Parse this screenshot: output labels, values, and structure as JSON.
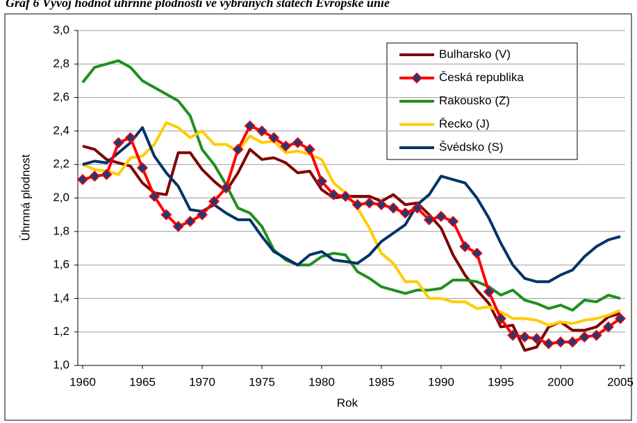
{
  "chart_data": {
    "type": "line",
    "title": "Graf 6 Vývoj hodnot úhrnné plodnosti ve vybraných státech Evropské unie",
    "x_label": "Rok",
    "y_label": "Úhrnná plodnost",
    "categories": [
      "1960",
      null,
      null,
      null,
      null,
      "1965",
      null,
      null,
      null,
      null,
      "1970",
      null,
      null,
      null,
      null,
      "1975",
      null,
      null,
      null,
      null,
      "1980",
      null,
      null,
      null,
      null,
      "1985",
      null,
      null,
      null,
      null,
      "1990",
      null,
      null,
      null,
      null,
      "1995",
      null,
      null,
      null,
      null,
      "2000",
      null,
      null,
      null,
      null,
      "2005"
    ],
    "ylim": [
      1.0,
      3.0
    ],
    "yticks": [
      {
        "value": 1.0,
        "label": "1,0"
      },
      {
        "value": 1.2,
        "label": "1,2"
      },
      {
        "value": 1.4,
        "label": "1,4"
      },
      {
        "value": 1.6,
        "label": "1,6"
      },
      {
        "value": 1.8,
        "label": "1,8"
      },
      {
        "value": 2.0,
        "label": "2,0"
      },
      {
        "value": 2.2,
        "label": "2,2"
      },
      {
        "value": 2.4,
        "label": "2,4"
      },
      {
        "value": 2.6,
        "label": "2,6"
      },
      {
        "value": 2.8,
        "label": "2,8"
      },
      {
        "value": 3.0,
        "label": "3,0"
      }
    ],
    "grid": true,
    "legend": "upper right",
    "series": [
      {
        "name": "Bulharsko (V)",
        "color": "#800000",
        "values": [
          2.31,
          2.29,
          2.23,
          2.21,
          2.19,
          2.09,
          2.03,
          2.02,
          2.27,
          2.27,
          2.17,
          2.1,
          2.04,
          2.15,
          2.29,
          2.23,
          2.24,
          2.21,
          2.15,
          2.16,
          2.05,
          2.0,
          2.01,
          2.01,
          2.01,
          1.98,
          2.02,
          1.96,
          1.97,
          1.9,
          1.82,
          1.66,
          1.54,
          1.45,
          1.37,
          1.23,
          1.24,
          1.09,
          1.11,
          1.23,
          1.26,
          1.21,
          1.21,
          1.23,
          1.29,
          1.31
        ]
      },
      {
        "name": "Česká republika",
        "color": "#ff0000",
        "marker": "diamond",
        "marker_color": "#1f3a78",
        "values": [
          2.11,
          2.13,
          2.14,
          2.33,
          2.36,
          2.18,
          2.01,
          1.9,
          1.83,
          1.86,
          1.9,
          1.98,
          2.06,
          2.29,
          2.43,
          2.4,
          2.36,
          2.31,
          2.33,
          2.29,
          2.1,
          2.02,
          2.01,
          1.96,
          1.97,
          1.96,
          1.94,
          1.91,
          1.94,
          1.87,
          1.89,
          1.86,
          1.71,
          1.67,
          1.44,
          1.28,
          1.18,
          1.17,
          1.16,
          1.13,
          1.14,
          1.14,
          1.17,
          1.18,
          1.23,
          1.28
        ]
      },
      {
        "name": "Rakousko (Z)",
        "color": "#1f8f1f",
        "values": [
          2.69,
          2.78,
          2.8,
          2.82,
          2.78,
          2.7,
          2.66,
          2.62,
          2.58,
          2.49,
          2.29,
          2.2,
          2.08,
          1.94,
          1.91,
          1.83,
          1.69,
          1.63,
          1.6,
          1.6,
          1.65,
          1.67,
          1.66,
          1.56,
          1.52,
          1.47,
          1.45,
          1.43,
          1.45,
          1.45,
          1.46,
          1.51,
          1.51,
          1.5,
          1.47,
          1.42,
          1.45,
          1.39,
          1.37,
          1.34,
          1.36,
          1.33,
          1.39,
          1.38,
          1.42,
          1.4
        ]
      },
      {
        "name": "Řecko (J)",
        "color": "#ffcc00",
        "values": [
          2.2,
          2.17,
          2.16,
          2.14,
          2.24,
          2.25,
          2.32,
          2.45,
          2.42,
          2.36,
          2.4,
          2.32,
          2.32,
          2.28,
          2.37,
          2.33,
          2.34,
          2.27,
          2.28,
          2.26,
          2.23,
          2.09,
          2.03,
          1.94,
          1.82,
          1.67,
          1.61,
          1.5,
          1.5,
          1.4,
          1.4,
          1.38,
          1.38,
          1.34,
          1.35,
          1.32,
          1.28,
          1.28,
          1.27,
          1.24,
          1.26,
          1.25,
          1.27,
          1.28,
          1.3,
          1.33
        ]
      },
      {
        "name": "Švédsko (S)",
        "color": "#003366",
        "values": [
          2.2,
          2.22,
          2.21,
          2.27,
          2.33,
          2.42,
          2.25,
          2.15,
          2.07,
          1.93,
          1.92,
          1.96,
          1.91,
          1.87,
          1.87,
          1.77,
          1.68,
          1.64,
          1.6,
          1.66,
          1.68,
          1.63,
          1.62,
          1.61,
          1.66,
          1.74,
          1.79,
          1.84,
          1.96,
          2.02,
          2.13,
          2.11,
          2.09,
          2.0,
          1.88,
          1.73,
          1.6,
          1.52,
          1.5,
          1.5,
          1.54,
          1.57,
          1.65,
          1.71,
          1.75,
          1.77
        ]
      }
    ]
  }
}
